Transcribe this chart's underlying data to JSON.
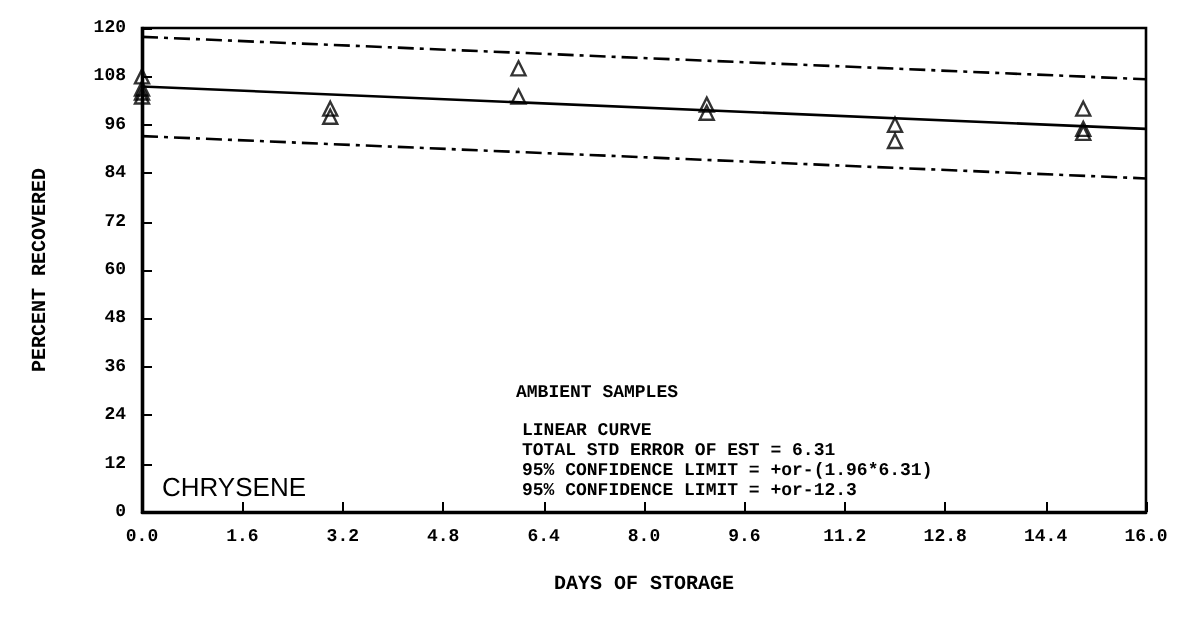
{
  "chart_data": {
    "type": "scatter",
    "xlabel": "DAYS OF STORAGE",
    "ylabel": "PERCENT RECOVERED",
    "annotations": [
      "AMBIENT SAMPLES",
      "LINEAR CURVE",
      "TOTAL STD ERROR OF EST = 6.31",
      "95% CONFIDENCE LIMIT = +or-(1.96*6.31)",
      "95% CONFIDENCE LIMIT = +or-12.3",
      "CHRYSENE"
    ],
    "xlim": [
      0,
      16
    ],
    "xticks": [
      {
        "value": 0,
        "label": "0.0"
      },
      {
        "value": 1.6,
        "label": "1.6"
      },
      {
        "value": 3.2,
        "label": "3.2"
      },
      {
        "value": 4.8,
        "label": "4.8"
      },
      {
        "value": 6.4,
        "label": "6.4"
      },
      {
        "value": 8,
        "label": "8.0"
      },
      {
        "value": 9.6,
        "label": "9.6"
      },
      {
        "value": 11.2,
        "label": "11.2"
      },
      {
        "value": 12.8,
        "label": "12.8"
      },
      {
        "value": 14.4,
        "label": "14.4"
      },
      {
        "value": 16,
        "label": "16.0"
      }
    ],
    "ylim": [
      0,
      120
    ],
    "yticks": [
      0,
      12,
      24,
      36,
      48,
      60,
      72,
      84,
      96,
      108,
      120
    ],
    "grid": false,
    "series": [
      {
        "type": "scatter",
        "color": "#000000",
        "marker": "triangle",
        "x": [
          0,
          0,
          0,
          0,
          3,
          3,
          6,
          6,
          9,
          9,
          12,
          12,
          15,
          15,
          15
        ],
        "values": [
          108,
          105,
          104,
          103,
          100,
          98,
          110,
          103,
          101,
          99,
          96,
          92,
          100,
          95,
          94
        ]
      },
      {
        "type": "line",
        "color": "#000000",
        "marker": "none",
        "line_style": "solid",
        "x": [
          0,
          16
        ],
        "values": [
          105.5,
          95
        ]
      },
      {
        "type": "line",
        "color": "#000000",
        "marker": "none",
        "line_style": "dashed",
        "x": [
          0,
          16
        ],
        "values": [
          117.8,
          107.3
        ]
      },
      {
        "type": "line",
        "color": "#000000",
        "marker": "none",
        "line_style": "dashed",
        "x": [
          0,
          16
        ],
        "values": [
          93.2,
          82.7
        ]
      }
    ]
  }
}
